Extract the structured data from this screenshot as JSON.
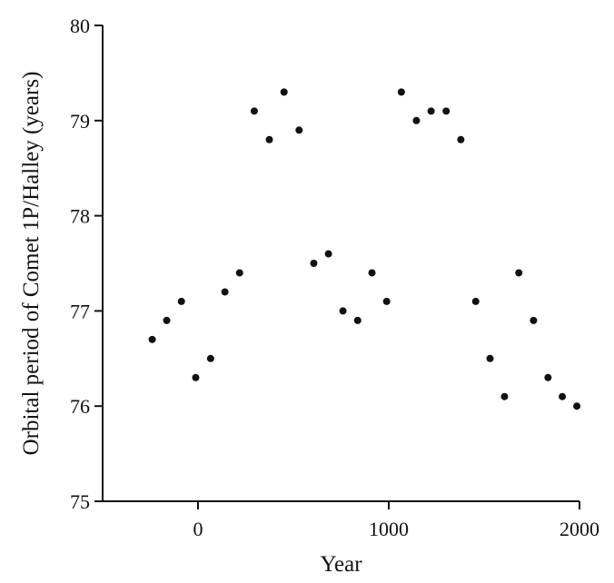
{
  "chart_data": {
    "type": "scatter",
    "title": "",
    "xlabel": "Year",
    "ylabel": "Orbital period of Comet 1P/Halley (years)",
    "xlim": [
      -500,
      2000
    ],
    "ylim": [
      75,
      80
    ],
    "x_ticks": [
      0,
      1000,
      2000
    ],
    "x_tick_labels": [
      "0",
      "1000",
      "2000"
    ],
    "y_ticks": [
      75,
      76,
      77,
      78,
      79,
      80
    ],
    "y_tick_labels": [
      "75",
      "76",
      "77",
      "78",
      "79",
      "80"
    ],
    "grid": false,
    "legend": "none",
    "marker_color": "#111111",
    "series": [
      {
        "points": [
          {
            "x": -240,
            "y": 76.7
          },
          {
            "x": -164,
            "y": 76.9
          },
          {
            "x": -87,
            "y": 77.1
          },
          {
            "x": -12,
            "y": 76.3
          },
          {
            "x": 66,
            "y": 76.5
          },
          {
            "x": 141,
            "y": 77.2
          },
          {
            "x": 218,
            "y": 77.4
          },
          {
            "x": 295,
            "y": 79.1
          },
          {
            "x": 374,
            "y": 78.8
          },
          {
            "x": 451,
            "y": 79.3
          },
          {
            "x": 530,
            "y": 78.9
          },
          {
            "x": 607,
            "y": 77.5
          },
          {
            "x": 684,
            "y": 77.6
          },
          {
            "x": 760,
            "y": 77.0
          },
          {
            "x": 837,
            "y": 76.9
          },
          {
            "x": 912,
            "y": 77.4
          },
          {
            "x": 989,
            "y": 77.1
          },
          {
            "x": 1066,
            "y": 79.3
          },
          {
            "x": 1145,
            "y": 79.0
          },
          {
            "x": 1222,
            "y": 79.1
          },
          {
            "x": 1301,
            "y": 79.1
          },
          {
            "x": 1378,
            "y": 78.8
          },
          {
            "x": 1456,
            "y": 77.1
          },
          {
            "x": 1531,
            "y": 76.5
          },
          {
            "x": 1607,
            "y": 76.1
          },
          {
            "x": 1682,
            "y": 77.4
          },
          {
            "x": 1759,
            "y": 76.9
          },
          {
            "x": 1835,
            "y": 76.3
          },
          {
            "x": 1910,
            "y": 76.1
          },
          {
            "x": 1986,
            "y": 76.0
          }
        ]
      }
    ]
  }
}
